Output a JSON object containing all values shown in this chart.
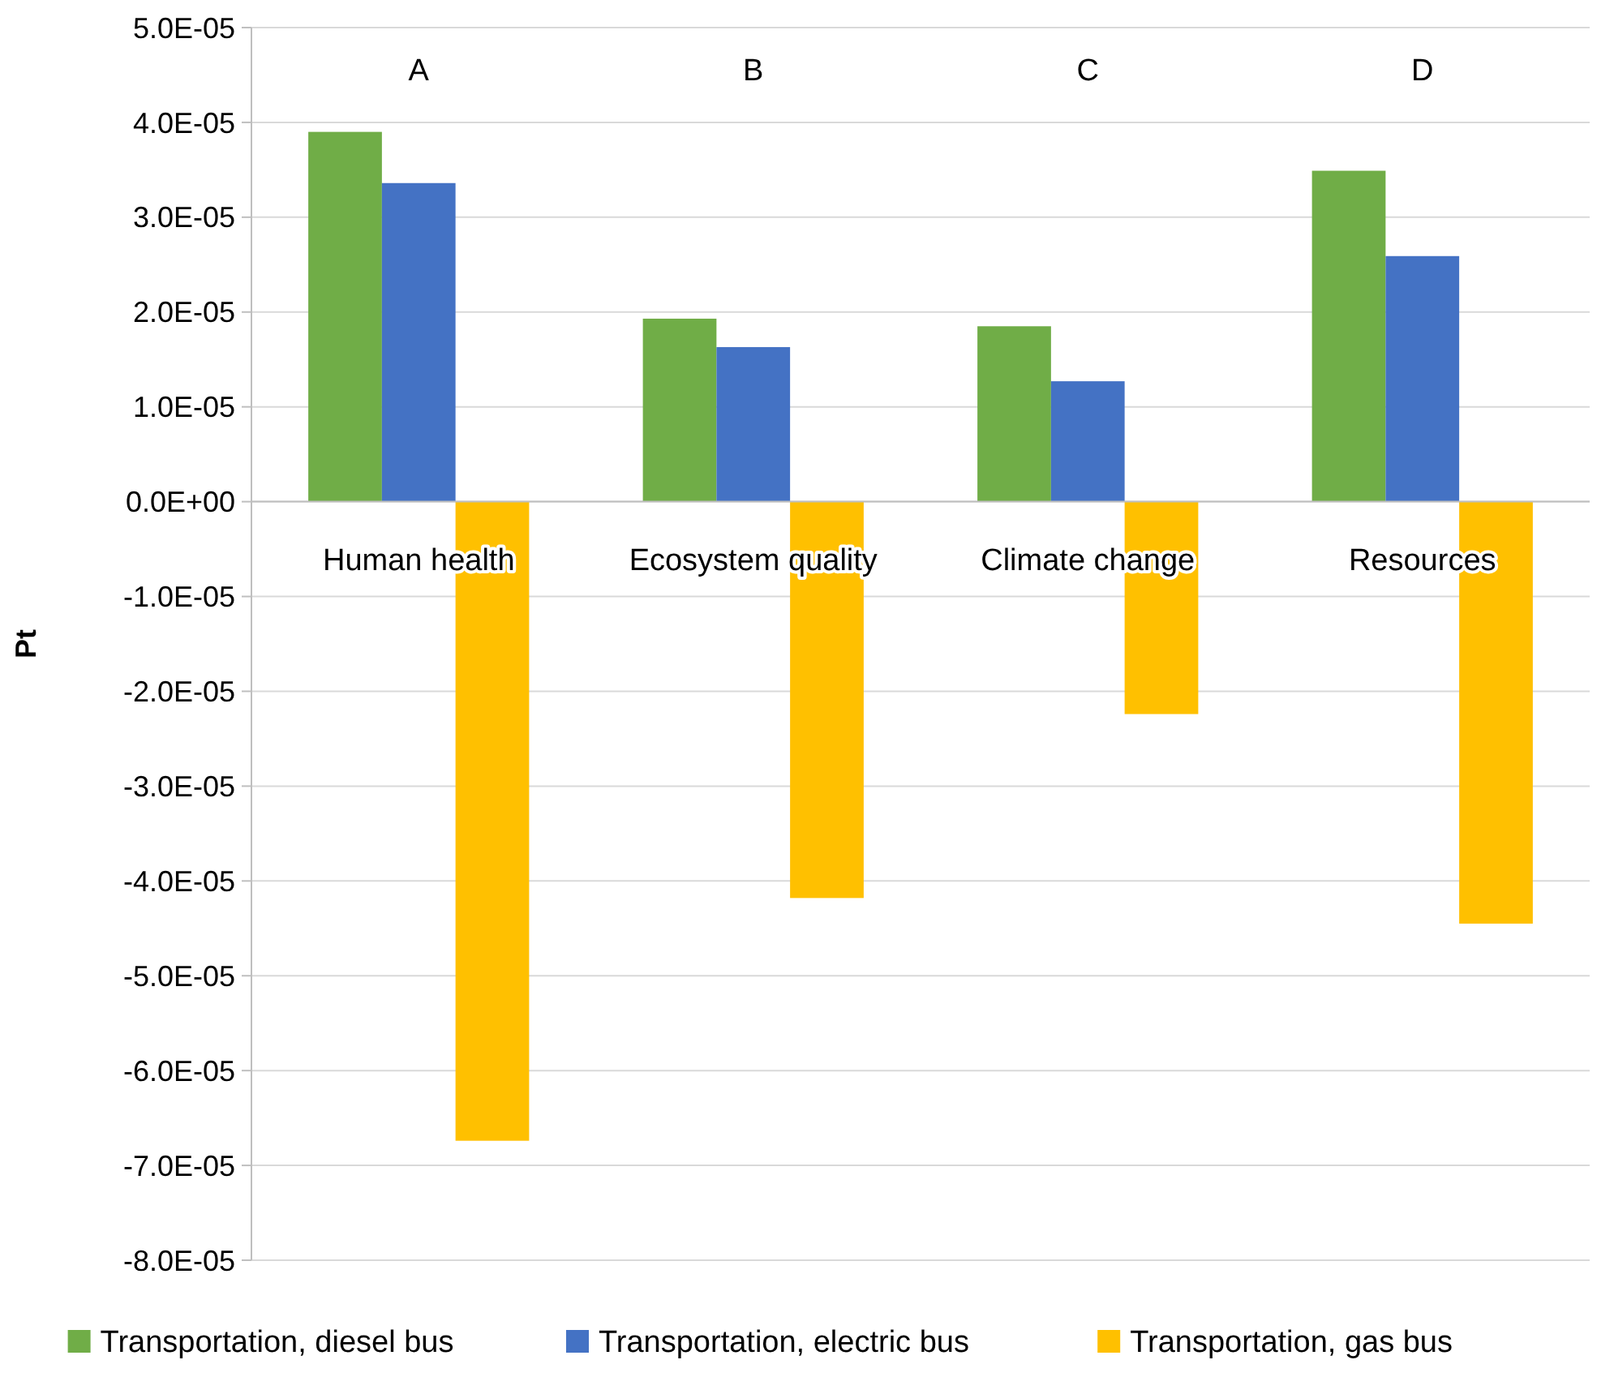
{
  "chart_data": {
    "type": "bar",
    "ylabel": "Pt",
    "categories": [
      "Human health",
      "Ecosystem quality",
      "Climate change",
      "Resources"
    ],
    "series": [
      {
        "name": "Transportation, diesel bus",
        "color": "#70ad47",
        "values": [
          3.9e-05,
          1.93e-05,
          1.85e-05,
          3.49e-05
        ]
      },
      {
        "name": "Transportation, electric bus",
        "color": "#4472c4",
        "values": [
          3.36e-05,
          1.63e-05,
          1.27e-05,
          2.59e-05
        ]
      },
      {
        "name": "Transportation, gas bus",
        "color": "#ffc000",
        "values": [
          -6.74e-05,
          -4.18e-05,
          -2.24e-05,
          -4.45e-05
        ]
      }
    ],
    "ylim": [
      -8e-05,
      5e-05
    ],
    "yticks": [
      {
        "value": -8e-05,
        "label": "-8.0E-05"
      },
      {
        "value": -7e-05,
        "label": "-7.0E-05"
      },
      {
        "value": -6e-05,
        "label": "-6.0E-05"
      },
      {
        "value": -5e-05,
        "label": "-5.0E-05"
      },
      {
        "value": -4e-05,
        "label": "-4.0E-05"
      },
      {
        "value": -3e-05,
        "label": "-3.0E-05"
      },
      {
        "value": -2e-05,
        "label": "-2.0E-05"
      },
      {
        "value": -1e-05,
        "label": "-1.0E-05"
      },
      {
        "value": 0,
        "label": "0.0E+00"
      },
      {
        "value": 1e-05,
        "label": "1.0E-05"
      },
      {
        "value": 2e-05,
        "label": "2.0E-05"
      },
      {
        "value": 3e-05,
        "label": "3.0E-05"
      },
      {
        "value": 4e-05,
        "label": "4.0E-05"
      },
      {
        "value": 5e-05,
        "label": "5.0E-05"
      }
    ],
    "grid": "y",
    "legend": "bottom",
    "annotations": [
      "A",
      "B",
      "C",
      "D"
    ]
  }
}
